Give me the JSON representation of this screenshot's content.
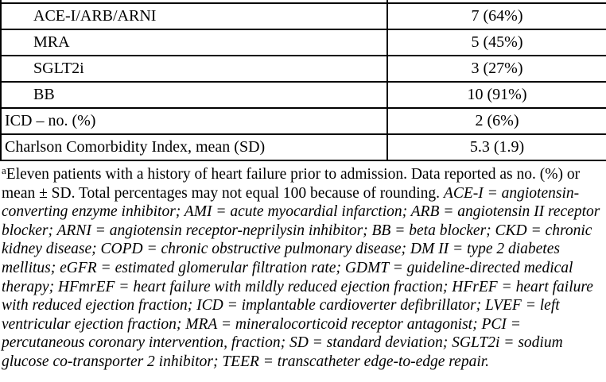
{
  "colors": {
    "text": "#000000",
    "border": "#000000",
    "background": "#ffffff"
  },
  "table": {
    "rows": [
      {
        "label": "ACE-I/ARB/ARNI",
        "value": "7 (64%)",
        "indented": true
      },
      {
        "label": "MRA",
        "value": "5 (45%)",
        "indented": true
      },
      {
        "label": "SGLT2i",
        "value": "3 (27%)",
        "indented": true
      },
      {
        "label": "BB",
        "value": "10 (91%)",
        "indented": true
      },
      {
        "label": "ICD – no. (%)",
        "value": "2 (6%)",
        "indented": false
      },
      {
        "label": "Charlson Comorbidity Index, mean (SD)",
        "value": "5.3 (1.9)",
        "indented": false
      }
    ]
  },
  "footnote": {
    "marker": "a",
    "regular": "Eleven patients with a history of heart failure prior to admission. Data reported as no. (%) or mean ± SD. Total percentages may not equal 100 because of rounding. ",
    "italic": "ACE-I = angiotensin-converting enzyme inhibitor; AMI = acute myocardial infarction; ARB = angiotensin II receptor blocker; ARNI = angiotensin receptor-neprilysin inhibitor; BB = beta blocker; CKD = chronic kidney disease; COPD = chronic obstructive pulmonary disease; DM II = type 2 diabetes mellitus; eGFR = estimated glomerular filtration rate; GDMT = guideline-directed medical therapy; HFmrEF = heart failure with mildly reduced ejection fraction; HFrEF = heart failure with reduced ejection fraction; ICD = implantable cardioverter defibrillator; LVEF = left ventricular ejection fraction; MRA = mineralocorticoid receptor antagonist; PCI = percutaneous coronary intervention, fraction; SD = standard deviation; SGLT2i = sodium glucose co-transporter 2 inhibitor; TEER = transcatheter edge-to-edge repair."
  }
}
